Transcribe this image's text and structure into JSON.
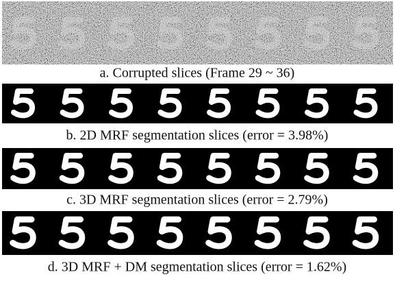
{
  "panels": [
    {
      "caption": "a. Corrupted slices (Frame 29 ~ 36)"
    },
    {
      "caption": "b. 2D MRF segmentation slices (error = 3.98%)"
    },
    {
      "caption": "c. 3D MRF segmentation slices (error = 2.79%)"
    },
    {
      "caption": "d. 3D MRF + DM segmentation slices (error = 1.62%)"
    }
  ]
}
